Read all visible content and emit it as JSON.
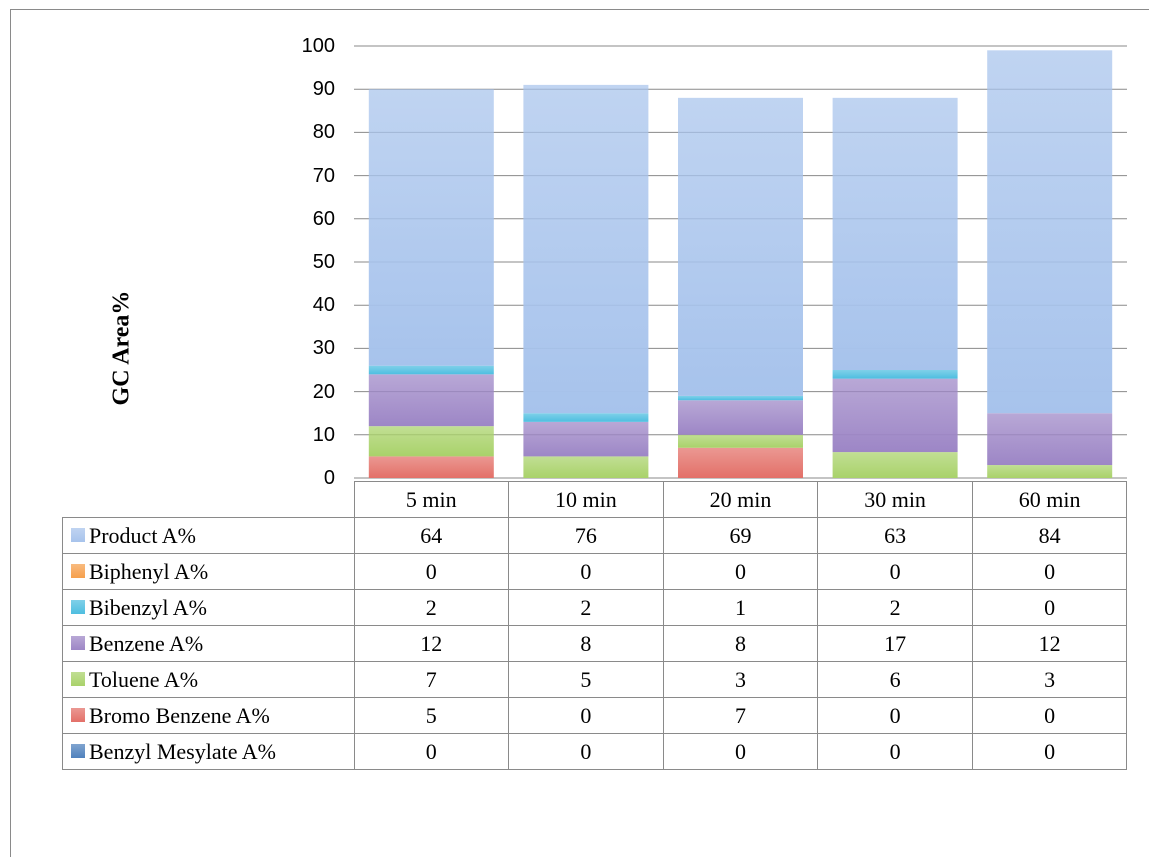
{
  "chart_data": {
    "type": "bar",
    "stacked": true,
    "categories": [
      "5 min",
      "10 min",
      "20 min",
      "30 min",
      "60 min"
    ],
    "ylabel": "GC Area%",
    "ylim": [
      0,
      100
    ],
    "yticks": [
      "0",
      "10",
      "20",
      "30",
      "40",
      "50",
      "60",
      "70",
      "80",
      "90",
      "100"
    ],
    "grid": true,
    "series": [
      {
        "name": "Product A%",
        "color": "#a7c3ec",
        "values": [
          "64",
          "76",
          "69",
          "63",
          "84"
        ]
      },
      {
        "name": "Biphenyl A%",
        "color": "#f6a04d",
        "values": [
          "0",
          "0",
          "0",
          "0",
          "0"
        ]
      },
      {
        "name": "Bibenzyl A%",
        "color": "#4ebee0",
        "values": [
          "2",
          "2",
          "1",
          "2",
          "0"
        ]
      },
      {
        "name": "Benzene A%",
        "color": "#9d86c6",
        "values": [
          "12",
          "8",
          "8",
          "17",
          "12"
        ]
      },
      {
        "name": "Toluene A%",
        "color": "#a9d26a",
        "values": [
          "7",
          "5",
          "3",
          "6",
          "3"
        ]
      },
      {
        "name": "Bromo Benzene A%",
        "color": "#e37068",
        "values": [
          "5",
          "0",
          "7",
          "0",
          "0"
        ]
      },
      {
        "name": "Benzyl Mesylate A%",
        "color": "#4f81bd",
        "values": [
          "0",
          "0",
          "0",
          "0",
          "0"
        ]
      }
    ]
  }
}
